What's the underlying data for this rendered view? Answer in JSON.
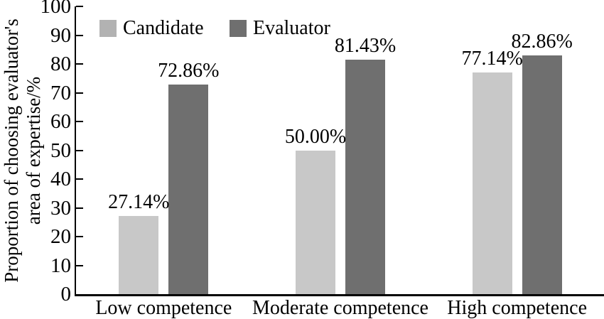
{
  "chart_data": {
    "type": "bar",
    "title": "",
    "ylabel_line1": "Proportion of choosing evaluator's",
    "ylabel_line2": "area of expertise/%",
    "xlabel": "",
    "categories": [
      "Low competence",
      "Moderate competence",
      "High competence"
    ],
    "series": [
      {
        "name": "Candidate",
        "color": "#c8c8c8",
        "legend_swatch_color": "#b2b2b2",
        "values": [
          27.14,
          50.0,
          77.14
        ],
        "labels": [
          "27.14%",
          "50.00%",
          "77.14%"
        ]
      },
      {
        "name": "Evaluator",
        "color": "#6f6f6f",
        "legend_swatch_color": "#6f6f6f",
        "values": [
          72.86,
          81.43,
          82.86
        ],
        "labels": [
          "72.86%",
          "81.43%",
          "82.86%"
        ]
      }
    ],
    "ylim": [
      0,
      100
    ],
    "yticks": [
      0,
      10,
      20,
      30,
      40,
      50,
      60,
      70,
      80,
      90,
      100
    ],
    "grid": false,
    "legend_position": "top-left-inside",
    "axis_color": "#000000",
    "text_color": "#000000",
    "background_color": "#ffffff"
  }
}
